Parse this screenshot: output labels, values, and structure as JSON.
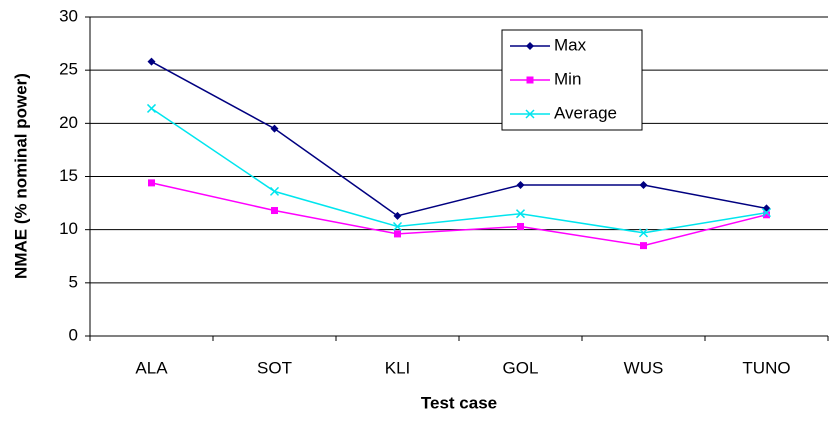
{
  "chart_data": {
    "type": "line",
    "x_label": "Test case",
    "y_label": "NMAE (% nominal power)",
    "categories": [
      "ALA",
      "SOT",
      "KLI",
      "GOL",
      "WUS",
      "TUNO"
    ],
    "series": [
      {
        "name": "Max",
        "color": "#000080",
        "marker": "diamond",
        "values": [
          25.8,
          19.5,
          11.3,
          14.2,
          14.2,
          12.0
        ]
      },
      {
        "name": "Min",
        "color": "#ff00ff",
        "marker": "square",
        "values": [
          14.4,
          11.8,
          9.6,
          10.3,
          8.5,
          11.4
        ]
      },
      {
        "name": "Average",
        "color": "#00e5ee",
        "marker": "x",
        "values": [
          21.4,
          13.6,
          10.3,
          11.5,
          9.7,
          11.6
        ]
      }
    ],
    "ylim": [
      0,
      30
    ],
    "yticks": [
      0,
      5,
      10,
      15,
      20,
      25,
      30
    ],
    "grid": true
  }
}
